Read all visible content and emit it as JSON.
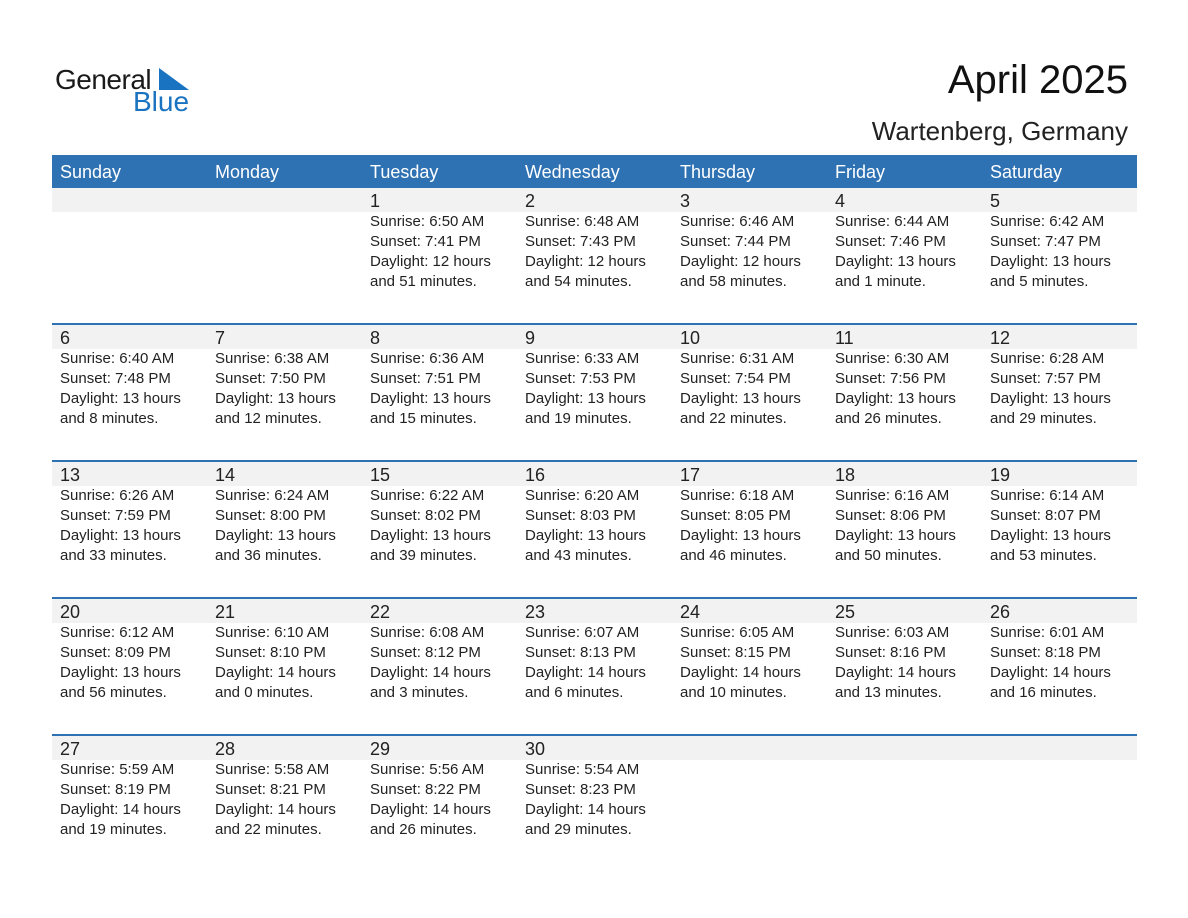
{
  "logo": {
    "word1": "General",
    "word2": "Blue",
    "accent": "#1a73c0"
  },
  "title": "April 2025",
  "subtitle": "Wartenberg, Germany",
  "colors": {
    "header_bg": "#2f72b3",
    "date_strip": "#f2f2f2"
  },
  "weekdays": [
    "Sunday",
    "Monday",
    "Tuesday",
    "Wednesday",
    "Thursday",
    "Friday",
    "Saturday"
  ],
  "weeks": [
    [
      null,
      null,
      {
        "day": "1",
        "sunrise": "Sunrise: 6:50 AM",
        "sunset": "Sunset: 7:41 PM",
        "daylight": "Daylight: 12 hours",
        "minutes": "and 51 minutes."
      },
      {
        "day": "2",
        "sunrise": "Sunrise: 6:48 AM",
        "sunset": "Sunset: 7:43 PM",
        "daylight": "Daylight: 12 hours",
        "minutes": "and 54 minutes."
      },
      {
        "day": "3",
        "sunrise": "Sunrise: 6:46 AM",
        "sunset": "Sunset: 7:44 PM",
        "daylight": "Daylight: 12 hours",
        "minutes": "and 58 minutes."
      },
      {
        "day": "4",
        "sunrise": "Sunrise: 6:44 AM",
        "sunset": "Sunset: 7:46 PM",
        "daylight": "Daylight: 13 hours",
        "minutes": "and 1 minute."
      },
      {
        "day": "5",
        "sunrise": "Sunrise: 6:42 AM",
        "sunset": "Sunset: 7:47 PM",
        "daylight": "Daylight: 13 hours",
        "minutes": "and 5 minutes."
      }
    ],
    [
      {
        "day": "6",
        "sunrise": "Sunrise: 6:40 AM",
        "sunset": "Sunset: 7:48 PM",
        "daylight": "Daylight: 13 hours",
        "minutes": "and 8 minutes."
      },
      {
        "day": "7",
        "sunrise": "Sunrise: 6:38 AM",
        "sunset": "Sunset: 7:50 PM",
        "daylight": "Daylight: 13 hours",
        "minutes": "and 12 minutes."
      },
      {
        "day": "8",
        "sunrise": "Sunrise: 6:36 AM",
        "sunset": "Sunset: 7:51 PM",
        "daylight": "Daylight: 13 hours",
        "minutes": "and 15 minutes."
      },
      {
        "day": "9",
        "sunrise": "Sunrise: 6:33 AM",
        "sunset": "Sunset: 7:53 PM",
        "daylight": "Daylight: 13 hours",
        "minutes": "and 19 minutes."
      },
      {
        "day": "10",
        "sunrise": "Sunrise: 6:31 AM",
        "sunset": "Sunset: 7:54 PM",
        "daylight": "Daylight: 13 hours",
        "minutes": "and 22 minutes."
      },
      {
        "day": "11",
        "sunrise": "Sunrise: 6:30 AM",
        "sunset": "Sunset: 7:56 PM",
        "daylight": "Daylight: 13 hours",
        "minutes": "and 26 minutes."
      },
      {
        "day": "12",
        "sunrise": "Sunrise: 6:28 AM",
        "sunset": "Sunset: 7:57 PM",
        "daylight": "Daylight: 13 hours",
        "minutes": "and 29 minutes."
      }
    ],
    [
      {
        "day": "13",
        "sunrise": "Sunrise: 6:26 AM",
        "sunset": "Sunset: 7:59 PM",
        "daylight": "Daylight: 13 hours",
        "minutes": "and 33 minutes."
      },
      {
        "day": "14",
        "sunrise": "Sunrise: 6:24 AM",
        "sunset": "Sunset: 8:00 PM",
        "daylight": "Daylight: 13 hours",
        "minutes": "and 36 minutes."
      },
      {
        "day": "15",
        "sunrise": "Sunrise: 6:22 AM",
        "sunset": "Sunset: 8:02 PM",
        "daylight": "Daylight: 13 hours",
        "minutes": "and 39 minutes."
      },
      {
        "day": "16",
        "sunrise": "Sunrise: 6:20 AM",
        "sunset": "Sunset: 8:03 PM",
        "daylight": "Daylight: 13 hours",
        "minutes": "and 43 minutes."
      },
      {
        "day": "17",
        "sunrise": "Sunrise: 6:18 AM",
        "sunset": "Sunset: 8:05 PM",
        "daylight": "Daylight: 13 hours",
        "minutes": "and 46 minutes."
      },
      {
        "day": "18",
        "sunrise": "Sunrise: 6:16 AM",
        "sunset": "Sunset: 8:06 PM",
        "daylight": "Daylight: 13 hours",
        "minutes": "and 50 minutes."
      },
      {
        "day": "19",
        "sunrise": "Sunrise: 6:14 AM",
        "sunset": "Sunset: 8:07 PM",
        "daylight": "Daylight: 13 hours",
        "minutes": "and 53 minutes."
      }
    ],
    [
      {
        "day": "20",
        "sunrise": "Sunrise: 6:12 AM",
        "sunset": "Sunset: 8:09 PM",
        "daylight": "Daylight: 13 hours",
        "minutes": "and 56 minutes."
      },
      {
        "day": "21",
        "sunrise": "Sunrise: 6:10 AM",
        "sunset": "Sunset: 8:10 PM",
        "daylight": "Daylight: 14 hours",
        "minutes": "and 0 minutes."
      },
      {
        "day": "22",
        "sunrise": "Sunrise: 6:08 AM",
        "sunset": "Sunset: 8:12 PM",
        "daylight": "Daylight: 14 hours",
        "minutes": "and 3 minutes."
      },
      {
        "day": "23",
        "sunrise": "Sunrise: 6:07 AM",
        "sunset": "Sunset: 8:13 PM",
        "daylight": "Daylight: 14 hours",
        "minutes": "and 6 minutes."
      },
      {
        "day": "24",
        "sunrise": "Sunrise: 6:05 AM",
        "sunset": "Sunset: 8:15 PM",
        "daylight": "Daylight: 14 hours",
        "minutes": "and 10 minutes."
      },
      {
        "day": "25",
        "sunrise": "Sunrise: 6:03 AM",
        "sunset": "Sunset: 8:16 PM",
        "daylight": "Daylight: 14 hours",
        "minutes": "and 13 minutes."
      },
      {
        "day": "26",
        "sunrise": "Sunrise: 6:01 AM",
        "sunset": "Sunset: 8:18 PM",
        "daylight": "Daylight: 14 hours",
        "minutes": "and 16 minutes."
      }
    ],
    [
      {
        "day": "27",
        "sunrise": "Sunrise: 5:59 AM",
        "sunset": "Sunset: 8:19 PM",
        "daylight": "Daylight: 14 hours",
        "minutes": "and 19 minutes."
      },
      {
        "day": "28",
        "sunrise": "Sunrise: 5:58 AM",
        "sunset": "Sunset: 8:21 PM",
        "daylight": "Daylight: 14 hours",
        "minutes": "and 22 minutes."
      },
      {
        "day": "29",
        "sunrise": "Sunrise: 5:56 AM",
        "sunset": "Sunset: 8:22 PM",
        "daylight": "Daylight: 14 hours",
        "minutes": "and 26 minutes."
      },
      {
        "day": "30",
        "sunrise": "Sunrise: 5:54 AM",
        "sunset": "Sunset: 8:23 PM",
        "daylight": "Daylight: 14 hours",
        "minutes": "and 29 minutes."
      },
      null,
      null,
      null
    ]
  ]
}
